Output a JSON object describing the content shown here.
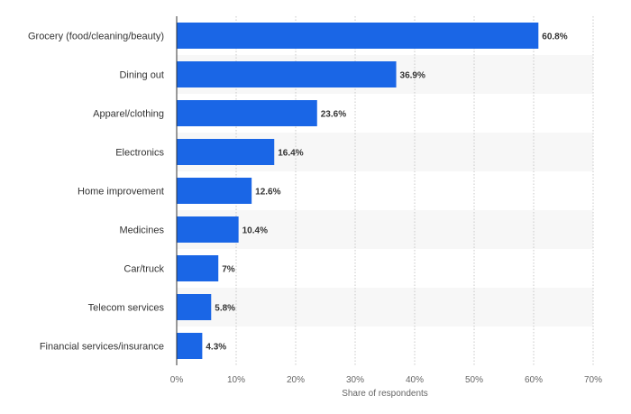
{
  "chart_data": {
    "type": "bar",
    "orientation": "horizontal",
    "categories": [
      "Grocery (food/cleaning/beauty)",
      "Dining out",
      "Apparel/clothing",
      "Electronics",
      "Home improvement",
      "Medicines",
      "Car/truck",
      "Telecom services",
      "Financial services/insurance"
    ],
    "values": [
      60.8,
      36.9,
      23.6,
      16.4,
      12.6,
      10.4,
      7,
      5.8,
      4.3
    ],
    "value_labels": [
      "60.8%",
      "36.9%",
      "23.6%",
      "16.4%",
      "12.6%",
      "10.4%",
      "7%",
      "5.8%",
      "4.3%"
    ],
    "xlabel": "Share of respondents",
    "ylabel": "",
    "xlim": [
      0,
      70
    ],
    "xticks": [
      0,
      10,
      20,
      30,
      40,
      50,
      60,
      70
    ],
    "xtick_labels": [
      "0%",
      "10%",
      "20%",
      "30%",
      "40%",
      "50%",
      "60%",
      "70%"
    ],
    "grid": true,
    "legend": "none",
    "bar_color": "#1a66e6",
    "band_color": "#f7f7f7"
  }
}
